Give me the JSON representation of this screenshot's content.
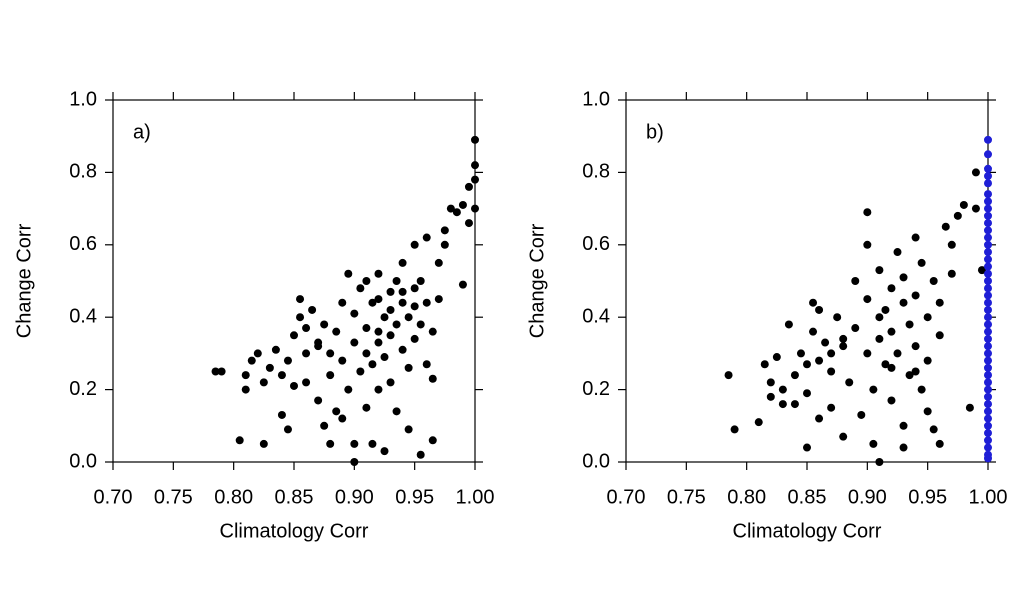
{
  "chart_data": [
    {
      "type": "scatter",
      "annotation": "a)",
      "x_label": "Climatology Corr",
      "y_label": "Change Corr",
      "xlim": [
        0.7,
        1.0
      ],
      "ylim": [
        0,
        1.0
      ],
      "xticks": [
        {
          "value": 0.7,
          "label": "0.70"
        },
        0.75,
        {
          "value": 0.8,
          "label": "0.80"
        },
        0.85,
        {
          "value": 0.9,
          "label": "0.90"
        },
        0.95,
        {
          "value": 1.0,
          "label": "1.00"
        }
      ],
      "yticks": [
        {
          "value": 0,
          "label": "0.0"
        },
        0.2,
        0.4,
        0.6,
        0.8,
        {
          "value": 1.0,
          "label": "1.0"
        }
      ],
      "series": [
        {
          "color": "#000000",
          "x": [
            0.785,
            0.79,
            0.805,
            0.81,
            0.81,
            0.815,
            0.82,
            0.825,
            0.825,
            0.83,
            0.835,
            0.84,
            0.84,
            0.845,
            0.845,
            0.85,
            0.85,
            0.855,
            0.855,
            0.86,
            0.86,
            0.865,
            0.87,
            0.87,
            0.875,
            0.875,
            0.88,
            0.88,
            0.885,
            0.885,
            0.89,
            0.89,
            0.895,
            0.895,
            0.9,
            0.9,
            0.9,
            0.9,
            0.905,
            0.905,
            0.91,
            0.91,
            0.91,
            0.915,
            0.915,
            0.915,
            0.92,
            0.92,
            0.92,
            0.925,
            0.925,
            0.925,
            0.93,
            0.93,
            0.93,
            0.935,
            0.935,
            0.935,
            0.94,
            0.94,
            0.94,
            0.945,
            0.945,
            0.945,
            0.95,
            0.95,
            0.95,
            0.955,
            0.955,
            0.955,
            0.96,
            0.96,
            0.96,
            0.965,
            0.965,
            0.965,
            0.97,
            0.97,
            0.975,
            0.975,
            0.98,
            0.985,
            0.99,
            0.99,
            0.995,
            0.995,
            1.0,
            1.0,
            1.0,
            1.0,
            0.89,
            0.92,
            0.93,
            0.91,
            0.94,
            0.92,
            0.95,
            0.87,
            0.86,
            0.88
          ],
          "values": [
            0.25,
            0.25,
            0.06,
            0.24,
            0.2,
            0.28,
            0.3,
            0.05,
            0.22,
            0.26,
            0.31,
            0.24,
            0.13,
            0.28,
            0.09,
            0.21,
            0.35,
            0.45,
            0.4,
            0.3,
            0.22,
            0.42,
            0.33,
            0.17,
            0.38,
            0.1,
            0.3,
            0.24,
            0.14,
            0.36,
            0.28,
            0.44,
            0.52,
            0.2,
            0.0,
            0.33,
            0.05,
            0.41,
            0.25,
            0.48,
            0.3,
            0.15,
            0.37,
            0.05,
            0.44,
            0.27,
            0.33,
            0.52,
            0.2,
            0.4,
            0.03,
            0.29,
            0.47,
            0.35,
            0.22,
            0.5,
            0.38,
            0.14,
            0.44,
            0.31,
            0.55,
            0.26,
            0.4,
            0.09,
            0.48,
            0.34,
            0.6,
            0.38,
            0.02,
            0.5,
            0.27,
            0.44,
            0.62,
            0.06,
            0.23,
            0.36,
            0.55,
            0.45,
            0.6,
            0.64,
            0.7,
            0.69,
            0.49,
            0.71,
            0.76,
            0.66,
            0.89,
            0.82,
            0.78,
            0.7,
            0.12,
            0.45,
            0.42,
            0.5,
            0.47,
            0.36,
            0.43,
            0.32,
            0.37,
            0.05
          ]
        }
      ]
    },
    {
      "type": "scatter",
      "annotation": "b)",
      "x_label": "Climatology Corr",
      "y_label": "Change Corr",
      "xlim": [
        0.7,
        1.0
      ],
      "ylim": [
        0,
        1.0
      ],
      "xticks": [
        {
          "value": 0.7,
          "label": "0.70"
        },
        0.75,
        {
          "value": 0.8,
          "label": "0.80"
        },
        0.85,
        {
          "value": 0.9,
          "label": "0.90"
        },
        0.95,
        {
          "value": 1.0,
          "label": "1.00"
        }
      ],
      "yticks": [
        {
          "value": 0,
          "label": "0.0"
        },
        0.2,
        0.4,
        0.6,
        0.8,
        {
          "value": 1.0,
          "label": "1.0"
        }
      ],
      "series": [
        {
          "color": "#000000",
          "x": [
            0.785,
            0.79,
            0.81,
            0.815,
            0.82,
            0.82,
            0.825,
            0.83,
            0.835,
            0.84,
            0.84,
            0.845,
            0.85,
            0.85,
            0.855,
            0.855,
            0.86,
            0.86,
            0.865,
            0.87,
            0.87,
            0.875,
            0.88,
            0.88,
            0.885,
            0.89,
            0.89,
            0.895,
            0.9,
            0.9,
            0.9,
            0.905,
            0.905,
            0.91,
            0.91,
            0.91,
            0.915,
            0.915,
            0.92,
            0.92,
            0.92,
            0.925,
            0.925,
            0.93,
            0.93,
            0.93,
            0.935,
            0.935,
            0.94,
            0.94,
            0.94,
            0.945,
            0.945,
            0.95,
            0.95,
            0.955,
            0.955,
            0.96,
            0.96,
            0.965,
            0.97,
            0.975,
            0.98,
            0.985,
            0.99,
            0.99,
            0.995,
            0.9,
            0.92,
            0.93,
            0.88,
            0.87,
            0.86,
            0.95,
            0.96,
            0.85,
            0.83,
            0.91,
            0.94,
            0.97
          ],
          "values": [
            0.24,
            0.09,
            0.11,
            0.27,
            0.22,
            0.18,
            0.29,
            0.2,
            0.38,
            0.24,
            0.16,
            0.3,
            0.19,
            0.04,
            0.44,
            0.36,
            0.28,
            0.42,
            0.33,
            0.15,
            0.25,
            0.4,
            0.32,
            0.07,
            0.22,
            0.5,
            0.37,
            0.13,
            0.45,
            0.3,
            0.6,
            0.2,
            0.05,
            0.34,
            0.53,
            0.0,
            0.27,
            0.42,
            0.48,
            0.17,
            0.36,
            0.58,
            0.3,
            0.44,
            0.1,
            0.51,
            0.38,
            0.24,
            0.46,
            0.62,
            0.32,
            0.2,
            0.55,
            0.4,
            0.28,
            0.09,
            0.5,
            0.35,
            0.44,
            0.65,
            0.6,
            0.68,
            0.71,
            0.15,
            0.8,
            0.7,
            0.53,
            0.69,
            0.26,
            0.04,
            0.34,
            0.3,
            0.12,
            0.14,
            0.05,
            0.27,
            0.16,
            0.4,
            0.25,
            0.52
          ]
        },
        {
          "color": "#1f1fd6",
          "x": [
            1.0,
            1.0,
            1.0,
            1.0,
            1.0,
            1.0,
            1.0,
            1.0,
            1.0,
            1.0,
            1.0,
            1.0,
            1.0,
            1.0,
            1.0,
            1.0,
            1.0,
            1.0,
            1.0,
            1.0,
            1.0,
            1.0,
            1.0,
            1.0,
            1.0,
            1.0,
            1.0,
            1.0,
            1.0,
            1.0,
            1.0,
            1.0,
            1.0,
            1.0,
            1.0,
            1.0,
            1.0,
            1.0,
            1.0,
            1.0,
            1.0,
            1.0,
            1.0
          ],
          "values": [
            0.89,
            0.85,
            0.81,
            0.79,
            0.77,
            0.74,
            0.72,
            0.7,
            0.68,
            0.66,
            0.64,
            0.62,
            0.6,
            0.58,
            0.56,
            0.54,
            0.52,
            0.5,
            0.48,
            0.46,
            0.44,
            0.42,
            0.4,
            0.38,
            0.36,
            0.34,
            0.32,
            0.3,
            0.28,
            0.26,
            0.24,
            0.22,
            0.2,
            0.18,
            0.16,
            0.14,
            0.12,
            0.1,
            0.08,
            0.06,
            0.04,
            0.02,
            0.01
          ]
        }
      ]
    }
  ]
}
